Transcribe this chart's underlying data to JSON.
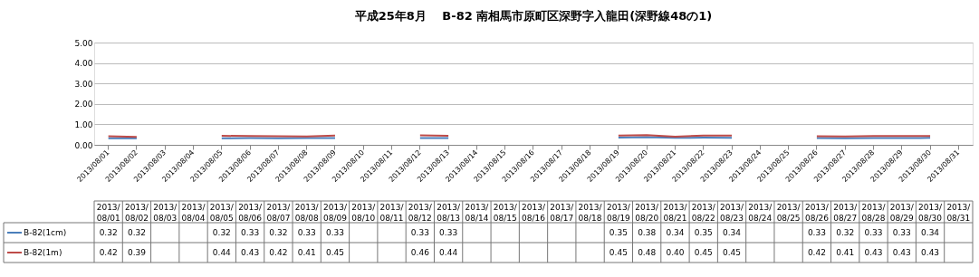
{
  "chart_data": {
    "type": "line",
    "title": "平成25年8月　 B-82 南相馬市原町区深野字入龍田(深野線48の1)",
    "categories": [
      "2013/08/01",
      "2013/08/02",
      "2013/08/03",
      "2013/08/04",
      "2013/08/05",
      "2013/08/06",
      "2013/08/07",
      "2013/08/08",
      "2013/08/09",
      "2013/08/10",
      "2013/08/11",
      "2013/08/12",
      "2013/08/13",
      "2013/08/14",
      "2013/08/15",
      "2013/08/16",
      "2013/08/17",
      "2013/08/18",
      "2013/08/19",
      "2013/08/20",
      "2013/08/21",
      "2013/08/22",
      "2013/08/23",
      "2013/08/24",
      "2013/08/25",
      "2013/08/26",
      "2013/08/27",
      "2013/08/28",
      "2013/08/29",
      "2013/08/30",
      "2013/08/31"
    ],
    "series": [
      {
        "name": "B-82(1cm)",
        "color": "#4a7ebb",
        "values": [
          0.32,
          0.32,
          null,
          null,
          0.32,
          0.33,
          0.32,
          0.33,
          0.33,
          null,
          null,
          0.33,
          0.33,
          null,
          null,
          null,
          null,
          null,
          0.35,
          0.38,
          0.34,
          0.35,
          0.34,
          null,
          null,
          0.33,
          0.32,
          0.33,
          0.33,
          0.34,
          null
        ],
        "value_labels": [
          "0.32",
          "0.32",
          null,
          null,
          "0.32",
          "0.33",
          "0.32",
          "0.33",
          "0.33",
          null,
          null,
          "0.33",
          "0.33",
          null,
          null,
          null,
          null,
          null,
          "0.35",
          "0.38",
          "0.34",
          "0.35",
          "0.34",
          null,
          null,
          "0.33",
          "0.32",
          "0.33",
          "0.33",
          "0.34",
          null
        ]
      },
      {
        "name": "B-82(1m)",
        "color": "#be4b48",
        "values": [
          0.42,
          0.39,
          null,
          null,
          0.44,
          0.43,
          0.42,
          0.41,
          0.45,
          null,
          null,
          0.46,
          0.44,
          null,
          null,
          null,
          null,
          null,
          0.45,
          0.48,
          0.4,
          0.45,
          0.45,
          null,
          null,
          0.42,
          0.41,
          0.43,
          0.43,
          0.43,
          null
        ],
        "value_labels": [
          "0.42",
          "0.39",
          null,
          null,
          "0.44",
          "0.43",
          "0.42",
          "0.41",
          "0.45",
          null,
          null,
          "0.46",
          "0.44",
          null,
          null,
          null,
          null,
          null,
          "0.45",
          "0.48",
          "0.40",
          "0.45",
          "0.45",
          null,
          null,
          "0.42",
          "0.41",
          "0.43",
          "0.43",
          "0.43",
          null
        ]
      }
    ],
    "ylim": [
      0,
      5
    ],
    "yticks": [
      {
        "value": 0,
        "label": "0.00"
      },
      {
        "value": 1,
        "label": "1.00"
      },
      {
        "value": 2,
        "label": "2.00"
      },
      {
        "value": 3,
        "label": "3.00"
      },
      {
        "value": 4,
        "label": "4.00"
      },
      {
        "value": 5,
        "label": "5.00"
      }
    ],
    "grid": "y",
    "legend": "bottom",
    "marker": "none",
    "line_style": "solid"
  }
}
